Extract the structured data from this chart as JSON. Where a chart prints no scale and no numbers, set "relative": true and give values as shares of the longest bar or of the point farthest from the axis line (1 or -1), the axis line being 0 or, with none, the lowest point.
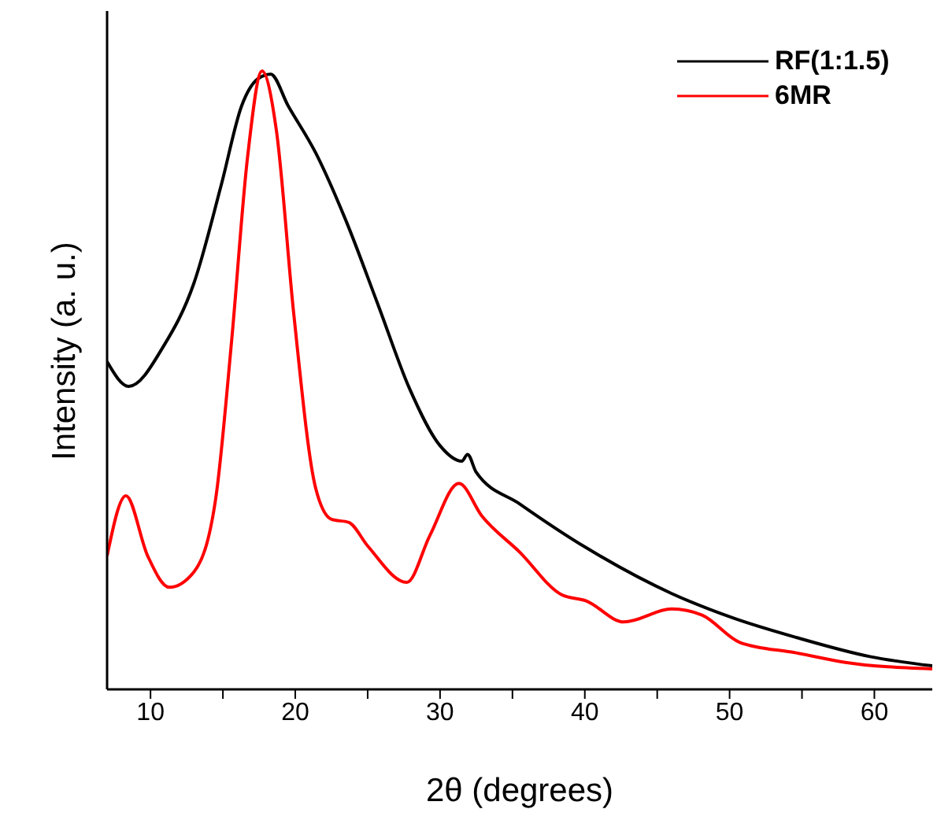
{
  "chart_data": {
    "type": "line",
    "xlabel": "2θ (degrees)",
    "ylabel": "Intensity (a. u.)",
    "relative": true,
    "xlim": [
      7,
      64
    ],
    "xticks": [
      10,
      {
        "value": 15,
        "label": null
      },
      20,
      {
        "value": 25,
        "label": null
      },
      30,
      {
        "value": 35,
        "label": null
      },
      40,
      {
        "value": 45,
        "label": null
      },
      50,
      {
        "value": 55,
        "label": null
      },
      60
    ],
    "legend": "top right",
    "marker": "none",
    "line_style": "solid",
    "series": [
      {
        "name": "RF(1:1.5)",
        "color": "#000000",
        "x": [
          7.0,
          8.5,
          10.9,
          13.0,
          14.9,
          16.3,
          17.4,
          18.3,
          19.5,
          21.4,
          23.5,
          25.7,
          27.9,
          30.0,
          31.5,
          31.9,
          32.5,
          35.5,
          40.1,
          46.0,
          50.3,
          54.6,
          59.7,
          64.0
        ],
        "values": [
          0.53,
          0.49,
          0.555,
          0.657,
          0.817,
          0.944,
          0.987,
          0.995,
          0.944,
          0.868,
          0.758,
          0.623,
          0.486,
          0.394,
          0.369,
          0.38,
          0.351,
          0.3,
          0.229,
          0.155,
          0.115,
          0.084,
          0.053,
          0.038
        ]
      },
      {
        "name": "6MR",
        "color": "#ff0000",
        "x": [
          7.0,
          8.3,
          9.8,
          11.3,
          13.0,
          14.5,
          15.6,
          16.7,
          17.7,
          18.7,
          19.9,
          21.4,
          22.5,
          23.7,
          25.0,
          27.7,
          29.3,
          31.3,
          32.9,
          35.5,
          38.4,
          40.1,
          42.7,
          46.0,
          48.1,
          50.7,
          54.6,
          57.9,
          64.0
        ],
        "values": [
          0.216,
          0.313,
          0.216,
          0.165,
          0.19,
          0.308,
          0.563,
          0.86,
          1.0,
          0.903,
          0.606,
          0.326,
          0.275,
          0.27,
          0.232,
          0.173,
          0.249,
          0.333,
          0.28,
          0.222,
          0.153,
          0.143,
          0.109,
          0.13,
          0.12,
          0.076,
          0.059,
          0.044,
          0.033
        ]
      }
    ]
  }
}
